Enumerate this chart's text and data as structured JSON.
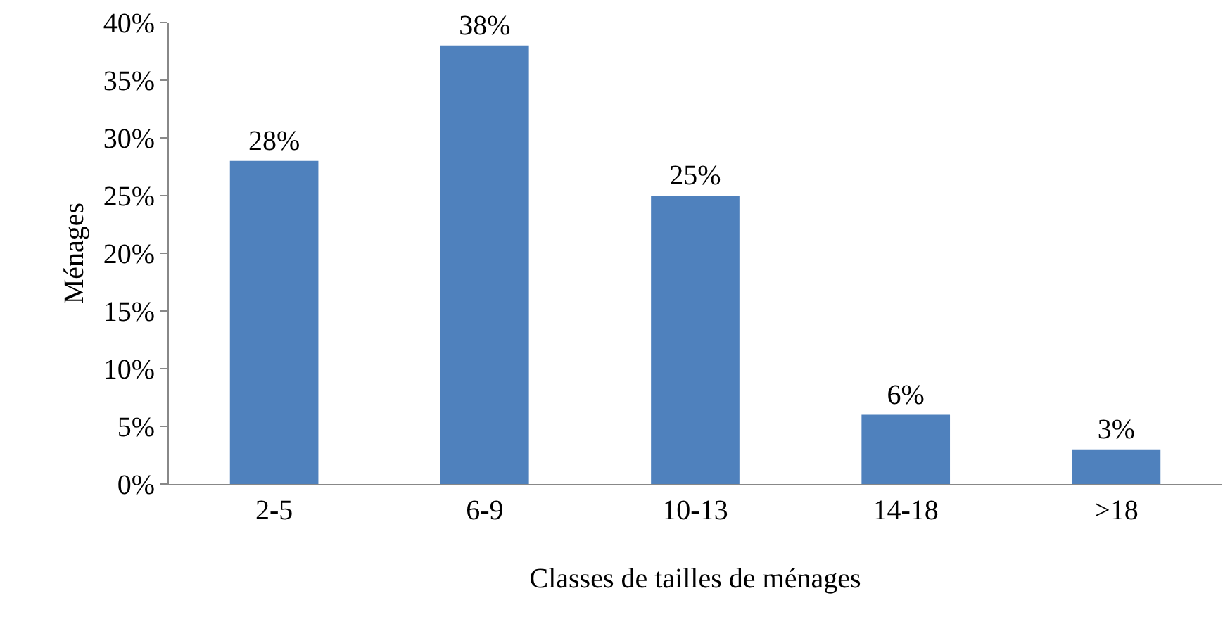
{
  "chart_data": {
    "type": "bar",
    "xlabel": "Classes de tailles de ménages",
    "ylabel": "Ménages",
    "categories": [
      "2-5",
      "6-9",
      "10-13",
      "14-18",
      ">18"
    ],
    "values": [
      28,
      38,
      25,
      6,
      3
    ],
    "value_labels": [
      "28%",
      "38%",
      "25%",
      "6%",
      "3%"
    ],
    "color": "#4f81bd",
    "ylim": [
      0,
      40
    ],
    "yticks": [
      {
        "value": 0,
        "label": "0%"
      },
      {
        "value": 5,
        "label": "5%"
      },
      {
        "value": 10,
        "label": "10%"
      },
      {
        "value": 15,
        "label": "15%"
      },
      {
        "value": 20,
        "label": "20%"
      },
      {
        "value": 25,
        "label": "25%"
      },
      {
        "value": 30,
        "label": "30%"
      },
      {
        "value": 35,
        "label": "35%"
      },
      {
        "value": 40,
        "label": "40%"
      }
    ],
    "grid": false
  }
}
